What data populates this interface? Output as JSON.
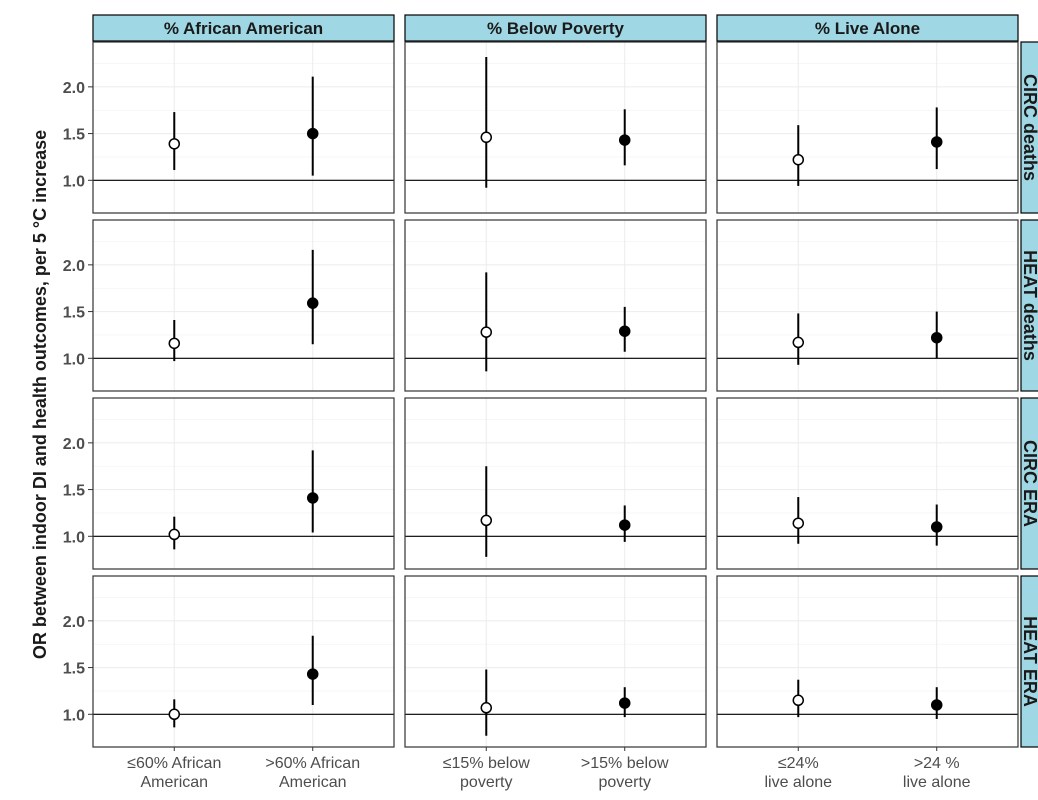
{
  "chart_data": {
    "type": "scatter",
    "subtype": "faceted point-range (odds ratios with 95% confidence intervals)",
    "ylabel": "OR between indoor DI and health outcomes, per 5 °C increase",
    "xlabel": "",
    "y_ticks": [
      "1.0",
      "1.5",
      "2.0"
    ],
    "ylim": [
      0.65,
      2.48
    ],
    "reference_line": 1.0,
    "grid": true,
    "colors": {
      "strip_fill": "#9fd8e4",
      "strip_border": "#000000",
      "panel_border": "#333333",
      "grid": "#ebebeb",
      "point_low": "#ffffff",
      "point_high": "#000000",
      "axis_text": "#4d4d4d"
    },
    "columns": [
      {
        "label": "% African American",
        "categories": [
          [
            "≤60% African",
            "American"
          ],
          [
            ">60% African",
            "American"
          ]
        ]
      },
      {
        "label": "% Below Poverty",
        "categories": [
          [
            "≤15% below",
            "poverty"
          ],
          [
            ">15% below",
            "poverty"
          ]
        ]
      },
      {
        "label": "% Live Alone",
        "categories": [
          [
            "≤24%",
            "live alone"
          ],
          [
            ">24 %",
            "live alone"
          ]
        ]
      }
    ],
    "rows": [
      {
        "label": "CIRC deaths",
        "cells": [
          [
            {
              "or": 1.39,
              "lo": 1.11,
              "hi": 1.73
            },
            {
              "or": 1.5,
              "lo": 1.05,
              "hi": 2.11
            }
          ],
          [
            {
              "or": 1.46,
              "lo": 0.92,
              "hi": 2.32
            },
            {
              "or": 1.43,
              "lo": 1.16,
              "hi": 1.76
            }
          ],
          [
            {
              "or": 1.22,
              "lo": 0.94,
              "hi": 1.59
            },
            {
              "or": 1.41,
              "lo": 1.12,
              "hi": 1.78
            }
          ]
        ]
      },
      {
        "label": "HEAT deaths",
        "cells": [
          [
            {
              "or": 1.16,
              "lo": 0.97,
              "hi": 1.41
            },
            {
              "or": 1.59,
              "lo": 1.15,
              "hi": 2.16
            }
          ],
          [
            {
              "or": 1.28,
              "lo": 0.86,
              "hi": 1.92
            },
            {
              "or": 1.29,
              "lo": 1.07,
              "hi": 1.55
            }
          ],
          [
            {
              "or": 1.17,
              "lo": 0.93,
              "hi": 1.48
            },
            {
              "or": 1.22,
              "lo": 1.0,
              "hi": 1.5
            }
          ]
        ]
      },
      {
        "label": "CIRC ERA",
        "cells": [
          [
            {
              "or": 1.02,
              "lo": 0.86,
              "hi": 1.21
            },
            {
              "or": 1.41,
              "lo": 1.04,
              "hi": 1.92
            }
          ],
          [
            {
              "or": 1.17,
              "lo": 0.78,
              "hi": 1.75
            },
            {
              "or": 1.12,
              "lo": 0.94,
              "hi": 1.33
            }
          ],
          [
            {
              "or": 1.14,
              "lo": 0.92,
              "hi": 1.42
            },
            {
              "or": 1.1,
              "lo": 0.9,
              "hi": 1.34
            }
          ]
        ]
      },
      {
        "label": "HEAT ERA",
        "cells": [
          [
            {
              "or": 1.0,
              "lo": 0.86,
              "hi": 1.16
            },
            {
              "or": 1.43,
              "lo": 1.1,
              "hi": 1.84
            }
          ],
          [
            {
              "or": 1.07,
              "lo": 0.77,
              "hi": 1.48
            },
            {
              "or": 1.12,
              "lo": 0.97,
              "hi": 1.29
            }
          ],
          [
            {
              "or": 1.15,
              "lo": 0.97,
              "hi": 1.37
            },
            {
              "or": 1.1,
              "lo": 0.95,
              "hi": 1.29
            }
          ]
        ]
      }
    ]
  }
}
